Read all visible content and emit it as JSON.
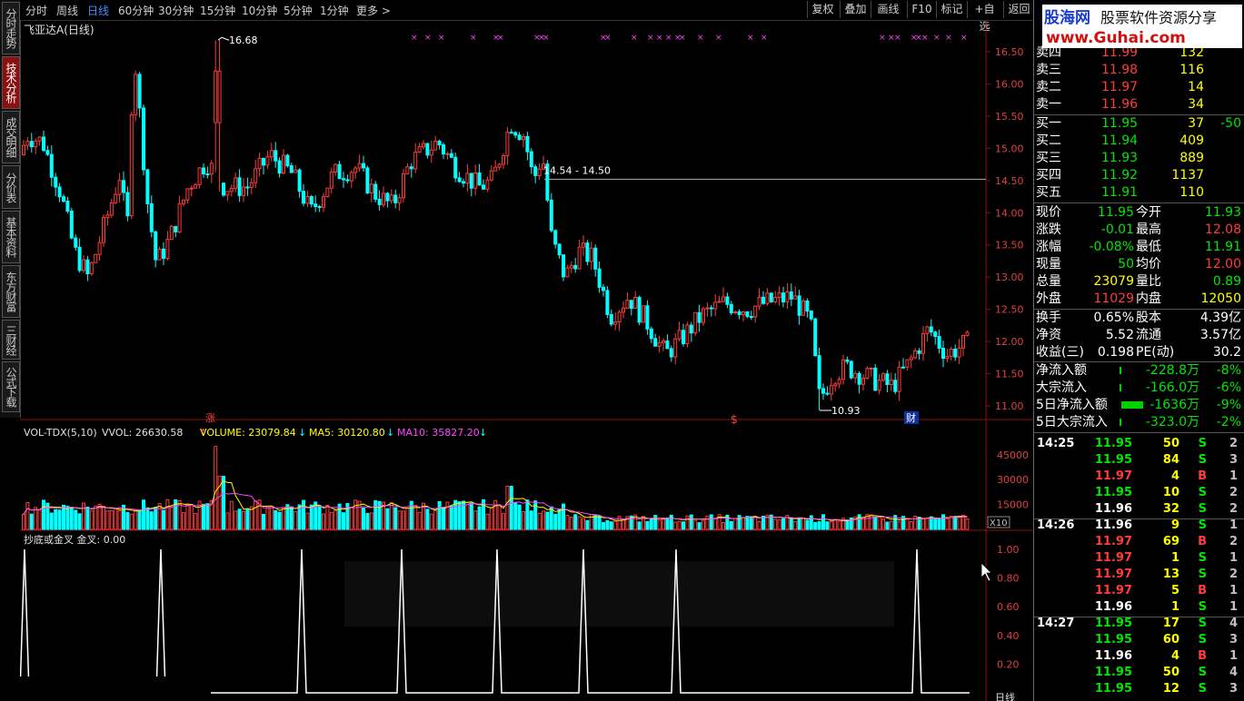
{
  "left_tabs": [
    {
      "label": "分时走势",
      "active": false
    },
    {
      "label": "技术分析",
      "active": true
    },
    {
      "label": "成交明细",
      "active": false
    },
    {
      "label": "分价表",
      "active": false
    },
    {
      "label": "基本资料",
      "active": false
    },
    {
      "label": "东方财富",
      "active": false
    },
    {
      "label": "三财经",
      "active": false
    },
    {
      "label": "公式下载",
      "active": false
    }
  ],
  "toolbar": {
    "periods": [
      "分时",
      "周线",
      "日线",
      "60分钟",
      "30分钟",
      "15分钟",
      "10分钟",
      "5分钟",
      "1分钟",
      "更多 >"
    ],
    "active_period": "日线",
    "right_buttons": [
      "复权",
      "叠加",
      "画线",
      "F10",
      "标记",
      "+自选",
      "返回"
    ]
  },
  "chart": {
    "title": "飞亚达A(日线)",
    "price_axis": [
      "16.50",
      "16.00",
      "15.50",
      "15.00",
      "14.50",
      "14.00",
      "13.50",
      "13.00",
      "12.50",
      "12.00",
      "11.50",
      "11.00"
    ],
    "high_label": "16.68",
    "low_label": "10.93",
    "range_label": "14.54 - 14.50",
    "event_markers": [
      "涨",
      "$",
      "财"
    ],
    "volume_header": {
      "name": "VOL-TDX(5,10)",
      "vvol": "VVOL: 26630.58",
      "volume": "VOLUME: 23079.84",
      "ma5": "MA5: 30120.80",
      "ma10": "MA10: 35827.20"
    },
    "volume_axis": [
      "45000",
      "30000",
      "15000"
    ],
    "volume_unit": "X10",
    "indicator_header": "抄底或金叉 金叉: 0.00",
    "indicator_axis": [
      "1.00",
      "0.80",
      "0.60",
      "0.40",
      "0.20"
    ],
    "bottom_label": "日线"
  },
  "logo": {
    "text1": "股海网",
    "text2": "股票软件资源分享",
    "url": "www.Guhai.com"
  },
  "order_book": {
    "asks": [
      {
        "label": "卖四",
        "price": "11.99",
        "vol": "132"
      },
      {
        "label": "卖三",
        "price": "11.98",
        "vol": "116"
      },
      {
        "label": "卖二",
        "price": "11.97",
        "vol": "14"
      },
      {
        "label": "卖一",
        "price": "11.96",
        "vol": "34"
      }
    ],
    "bids": [
      {
        "label": "买一",
        "price": "11.95",
        "vol": "37",
        "chg": "-50"
      },
      {
        "label": "买二",
        "price": "11.94",
        "vol": "409"
      },
      {
        "label": "买三",
        "price": "11.93",
        "vol": "889"
      },
      {
        "label": "买四",
        "price": "11.92",
        "vol": "1137"
      },
      {
        "label": "买五",
        "price": "11.91",
        "vol": "110"
      }
    ]
  },
  "quote": [
    {
      "l1": "现价",
      "v1": "11.95",
      "l2": "今开",
      "v2": "11.93"
    },
    {
      "l1": "涨跌",
      "v1": "-0.01",
      "l2": "最高",
      "v2": "12.08"
    },
    {
      "l1": "涨幅",
      "v1": "-0.08%",
      "l2": "最低",
      "v2": "11.91"
    },
    {
      "l1": "现量",
      "v1": "50",
      "l2": "均价",
      "v2": "12.00"
    },
    {
      "l1": "总量",
      "v1": "23079",
      "l2": "量比",
      "v2": "0.89"
    },
    {
      "l1": "外盘",
      "v1": "11029",
      "l2": "内盘",
      "v2": "12050"
    }
  ],
  "fundamentals": [
    {
      "l1": "换手",
      "v1": "0.65%",
      "l2": "股本",
      "v2": "4.39亿"
    },
    {
      "l1": "净资",
      "v1": "5.52",
      "l2": "流通",
      "v2": "3.57亿"
    },
    {
      "l1": "收益(三)",
      "v1": "0.198",
      "l2": "PE(动)",
      "v2": "30.2"
    }
  ],
  "flows": [
    {
      "label": "净流入额",
      "value": "-228.8万",
      "pct": "-8%",
      "bar": 2
    },
    {
      "label": "大宗流入",
      "value": "-166.0万",
      "pct": "-6%",
      "bar": 2
    },
    {
      "label": "5日净流入额",
      "value": "-1636万",
      "pct": "-9%",
      "bar": 24
    },
    {
      "label": "5日大宗流入",
      "value": "-323.0万",
      "pct": "-2%",
      "bar": 2
    }
  ],
  "ticks": [
    {
      "time": "14:25",
      "price": "11.95",
      "vol": "50",
      "side": "S",
      "n": "2"
    },
    {
      "time": "",
      "price": "11.95",
      "vol": "84",
      "side": "S",
      "n": "3"
    },
    {
      "time": "",
      "price": "11.97",
      "vol": "4",
      "side": "B",
      "n": "1"
    },
    {
      "time": "",
      "price": "11.95",
      "vol": "10",
      "side": "S",
      "n": "2"
    },
    {
      "time": "",
      "price": "11.96",
      "vol": "32",
      "side": "S",
      "n": "2"
    },
    {
      "time": "14:26",
      "price": "11.96",
      "vol": "9",
      "side": "S",
      "n": "1"
    },
    {
      "time": "",
      "price": "11.97",
      "vol": "69",
      "side": "B",
      "n": "2"
    },
    {
      "time": "",
      "price": "11.97",
      "vol": "1",
      "side": "S",
      "n": "1"
    },
    {
      "time": "",
      "price": "11.97",
      "vol": "13",
      "side": "S",
      "n": "2"
    },
    {
      "time": "",
      "price": "11.97",
      "vol": "5",
      "side": "B",
      "n": "1"
    },
    {
      "time": "",
      "price": "11.96",
      "vol": "1",
      "side": "S",
      "n": "1"
    },
    {
      "time": "14:27",
      "price": "11.95",
      "vol": "17",
      "side": "S",
      "n": "4"
    },
    {
      "time": "",
      "price": "11.95",
      "vol": "60",
      "side": "S",
      "n": "3"
    },
    {
      "time": "",
      "price": "11.96",
      "vol": "4",
      "side": "B",
      "n": "1"
    },
    {
      "time": "",
      "price": "11.95",
      "vol": "50",
      "side": "S",
      "n": "4"
    },
    {
      "time": "",
      "price": "11.95",
      "vol": "12",
      "side": "S",
      "n": "3"
    }
  ],
  "colors": {
    "up": "#ff3b3b",
    "down": "#00ffff",
    "ma5": "#ffff00",
    "ma10": "#ff44ff",
    "grid": "#8c1010"
  }
}
